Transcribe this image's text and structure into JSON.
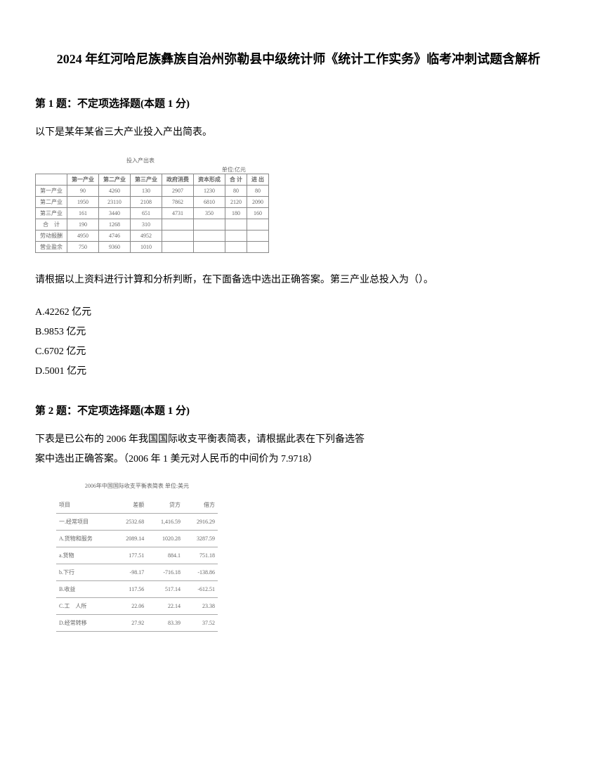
{
  "title": "2024 年红河哈尼族彝族自治州弥勒县中级统计师《统计工作实务》临考冲刺试题含解析",
  "q1": {
    "header": "第 1 题：不定项选择题(本题 1 分)",
    "intro": "以下是某年某省三大产业投入产出简表。",
    "table": {
      "caption": "投入产出表",
      "unit": "单位:亿元",
      "headers": [
        "",
        "第一产业",
        "第二产业",
        "第三产业",
        "政府消费",
        "资本形成",
        "合 计",
        "进 出"
      ],
      "rows": [
        [
          "第一产业",
          "90",
          "4260",
          "130",
          "2907",
          "1230",
          "80",
          "80"
        ],
        [
          "第二产业",
          "1950",
          "23110",
          "2108",
          "7862",
          "6810",
          "2120",
          "2090"
        ],
        [
          "第三产业",
          "161",
          "3440",
          "651",
          "4731",
          "350",
          "180",
          "160"
        ],
        [
          "合　计",
          "190",
          "1268",
          "310",
          "",
          "",
          "",
          ""
        ],
        [
          "劳动报酬",
          "4950",
          "4746",
          "4952",
          "",
          "",
          "",
          ""
        ],
        [
          "营业盈余",
          "750",
          "9360",
          "1010",
          "",
          "",
          "",
          ""
        ]
      ]
    },
    "ask": "请根据以上资料进行计算和分析判断，在下面备选中选出正确答案。第三产业总投入为（）。",
    "options": {
      "a": "A.42262 亿元",
      "b": "B.9853 亿元",
      "c": "C.6702 亿元",
      "d": "D.5001 亿元"
    }
  },
  "q2": {
    "header": "第 2 题：不定项选择题(本题 1 分)",
    "text1": "下表是已公布的 2006 年我国国际收支平衡表简表，请根据此表在下列备选答",
    "text2": "案中选出正确答案。（2006 年 1 美元对人民币的中间价为 7.9718）",
    "table": {
      "caption": "2006年中国国际收支平衡表简表 单位:美元",
      "rows": [
        [
          "项目",
          "差额",
          "贷方",
          "借方"
        ],
        [
          "一.经常项目",
          "2532.68",
          "1,416.59",
          "2916.29"
        ],
        [
          "A.货物和服务",
          "2089.14",
          "1020.28",
          "3287.59"
        ],
        [
          "a.货物",
          "177.51",
          "884.1",
          "751.18"
        ],
        [
          "b.下行",
          "-98.17",
          "-716.18",
          "-138.86"
        ],
        [
          "B.收益",
          "117.56",
          "517.14",
          "-612.51"
        ],
        [
          "C.工　人所",
          "22.06",
          "22.14",
          "23.38"
        ],
        [
          "D.经常转移",
          "27.92",
          "83.39",
          "37.52"
        ]
      ]
    }
  }
}
